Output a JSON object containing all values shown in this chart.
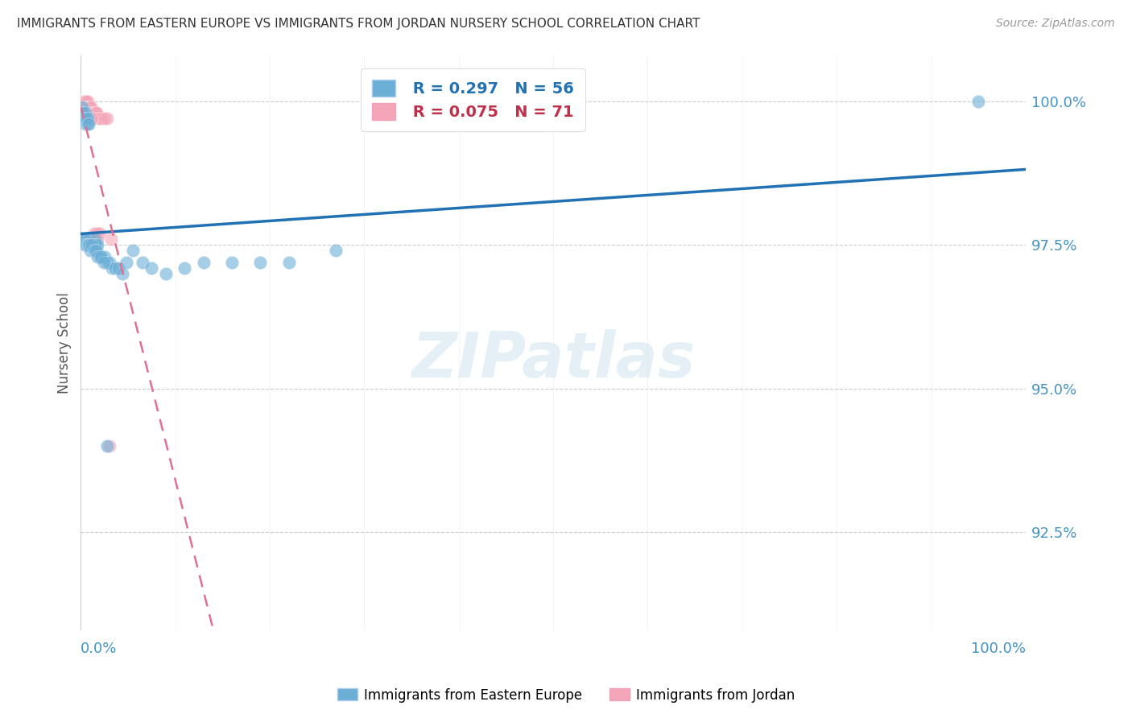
{
  "title": "IMMIGRANTS FROM EASTERN EUROPE VS IMMIGRANTS FROM JORDAN NURSERY SCHOOL CORRELATION CHART",
  "source": "Source: ZipAtlas.com",
  "ylabel": "Nursery School",
  "legend_blue_label": " R = 0.297   N = 56",
  "legend_pink_label": " R = 0.075   N = 71",
  "legend_label_blue": "Immigrants from Eastern Europe",
  "legend_label_pink": "Immigrants from Jordan",
  "watermark": "ZIPatlas",
  "blue_color": "#6baed6",
  "pink_color": "#f4a6b8",
  "blue_line_color": "#2171b5",
  "pink_line_color": "#e07090",
  "axis_label_color": "#4393c3",
  "title_color": "#333333",
  "source_color": "#999999",
  "ytick_labels": [
    "100.0%",
    "97.5%",
    "95.0%",
    "92.5%"
  ],
  "ytick_values": [
    1.0,
    0.975,
    0.95,
    0.925
  ],
  "ymin": 0.908,
  "ymax": 1.008,
  "xmin": 0.0,
  "xmax": 1.0,
  "blue_x": [
    0.001,
    0.002,
    0.003,
    0.004,
    0.005,
    0.005,
    0.006,
    0.007,
    0.007,
    0.008,
    0.009,
    0.01,
    0.011,
    0.012,
    0.013,
    0.014,
    0.015,
    0.016,
    0.017,
    0.018,
    0.02,
    0.022,
    0.025,
    0.028,
    0.03,
    0.033,
    0.036,
    0.04,
    0.044,
    0.048,
    0.055,
    0.065,
    0.075,
    0.09,
    0.11,
    0.13,
    0.16,
    0.19,
    0.22,
    0.27,
    0.003,
    0.004,
    0.005,
    0.006,
    0.007,
    0.008,
    0.009,
    0.01,
    0.012,
    0.014,
    0.016,
    0.018,
    0.021,
    0.024,
    0.028,
    0.95
  ],
  "blue_y": [
    0.999,
    0.998,
    0.997,
    0.997,
    0.996,
    0.998,
    0.997,
    0.996,
    0.997,
    0.996,
    0.976,
    0.975,
    0.975,
    0.975,
    0.975,
    0.975,
    0.976,
    0.975,
    0.974,
    0.975,
    0.973,
    0.973,
    0.973,
    0.972,
    0.972,
    0.971,
    0.971,
    0.971,
    0.97,
    0.972,
    0.974,
    0.972,
    0.971,
    0.97,
    0.971,
    0.972,
    0.972,
    0.972,
    0.972,
    0.974,
    0.976,
    0.975,
    0.976,
    0.975,
    0.975,
    0.975,
    0.975,
    0.974,
    0.975,
    0.974,
    0.974,
    0.973,
    0.973,
    0.972,
    0.94,
    1.0
  ],
  "pink_x": [
    0.0005,
    0.001,
    0.001,
    0.001,
    0.0015,
    0.002,
    0.002,
    0.002,
    0.0025,
    0.003,
    0.003,
    0.003,
    0.003,
    0.004,
    0.004,
    0.004,
    0.004,
    0.005,
    0.005,
    0.005,
    0.006,
    0.006,
    0.006,
    0.007,
    0.007,
    0.007,
    0.008,
    0.008,
    0.009,
    0.009,
    0.01,
    0.011,
    0.012,
    0.013,
    0.014,
    0.015,
    0.016,
    0.017,
    0.018,
    0.02,
    0.022,
    0.025,
    0.028,
    0.032,
    0.001,
    0.002,
    0.003,
    0.004,
    0.005,
    0.006,
    0.007,
    0.008,
    0.009,
    0.01,
    0.011,
    0.012,
    0.014,
    0.016,
    0.018,
    0.02,
    0.002,
    0.003,
    0.004,
    0.005,
    0.006,
    0.007,
    0.008,
    0.009,
    0.012,
    0.018,
    0.03
  ],
  "pink_y": [
    1.0,
    1.0,
    1.0,
    1.0,
    1.0,
    1.0,
    1.0,
    1.0,
    1.0,
    1.0,
    1.0,
    1.0,
    1.0,
    1.0,
    1.0,
    1.0,
    1.0,
    1.0,
    1.0,
    1.0,
    1.0,
    0.999,
    0.999,
    1.0,
    0.999,
    0.999,
    0.999,
    0.999,
    0.999,
    0.999,
    0.999,
    0.999,
    0.998,
    0.998,
    0.998,
    0.998,
    0.998,
    0.998,
    0.997,
    0.997,
    0.997,
    0.997,
    0.997,
    0.976,
    0.999,
    0.998,
    0.998,
    0.998,
    0.998,
    0.997,
    0.997,
    0.997,
    0.997,
    0.997,
    0.997,
    0.997,
    0.977,
    0.977,
    0.977,
    0.977,
    0.976,
    0.976,
    0.976,
    0.976,
    0.976,
    0.976,
    0.976,
    0.976,
    0.976,
    0.976,
    0.94
  ]
}
